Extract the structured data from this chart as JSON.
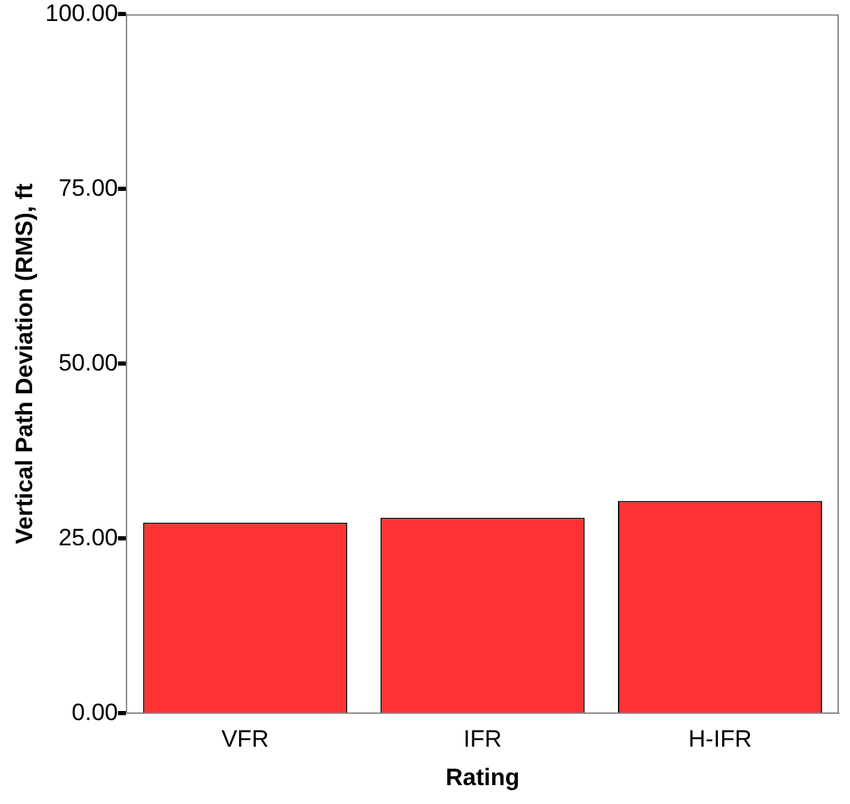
{
  "chart_data": {
    "type": "bar",
    "xlabel": "Rating",
    "ylabel": "Vertical Path Deviation (RMS), ft",
    "categories": [
      "VFR",
      "IFR",
      "H-IFR"
    ],
    "values": [
      27.3,
      28.0,
      30.4
    ],
    "color": "#ff3333",
    "ylim": [
      0,
      100
    ],
    "yticks": [
      {
        "value": 0,
        "label": "0.00"
      },
      {
        "value": 25,
        "label": "25.00"
      },
      {
        "value": 50,
        "label": "50.00"
      },
      {
        "value": 75,
        "label": "75.00"
      },
      {
        "value": 100,
        "label": "100.00"
      }
    ],
    "grid": false,
    "legend": false
  }
}
